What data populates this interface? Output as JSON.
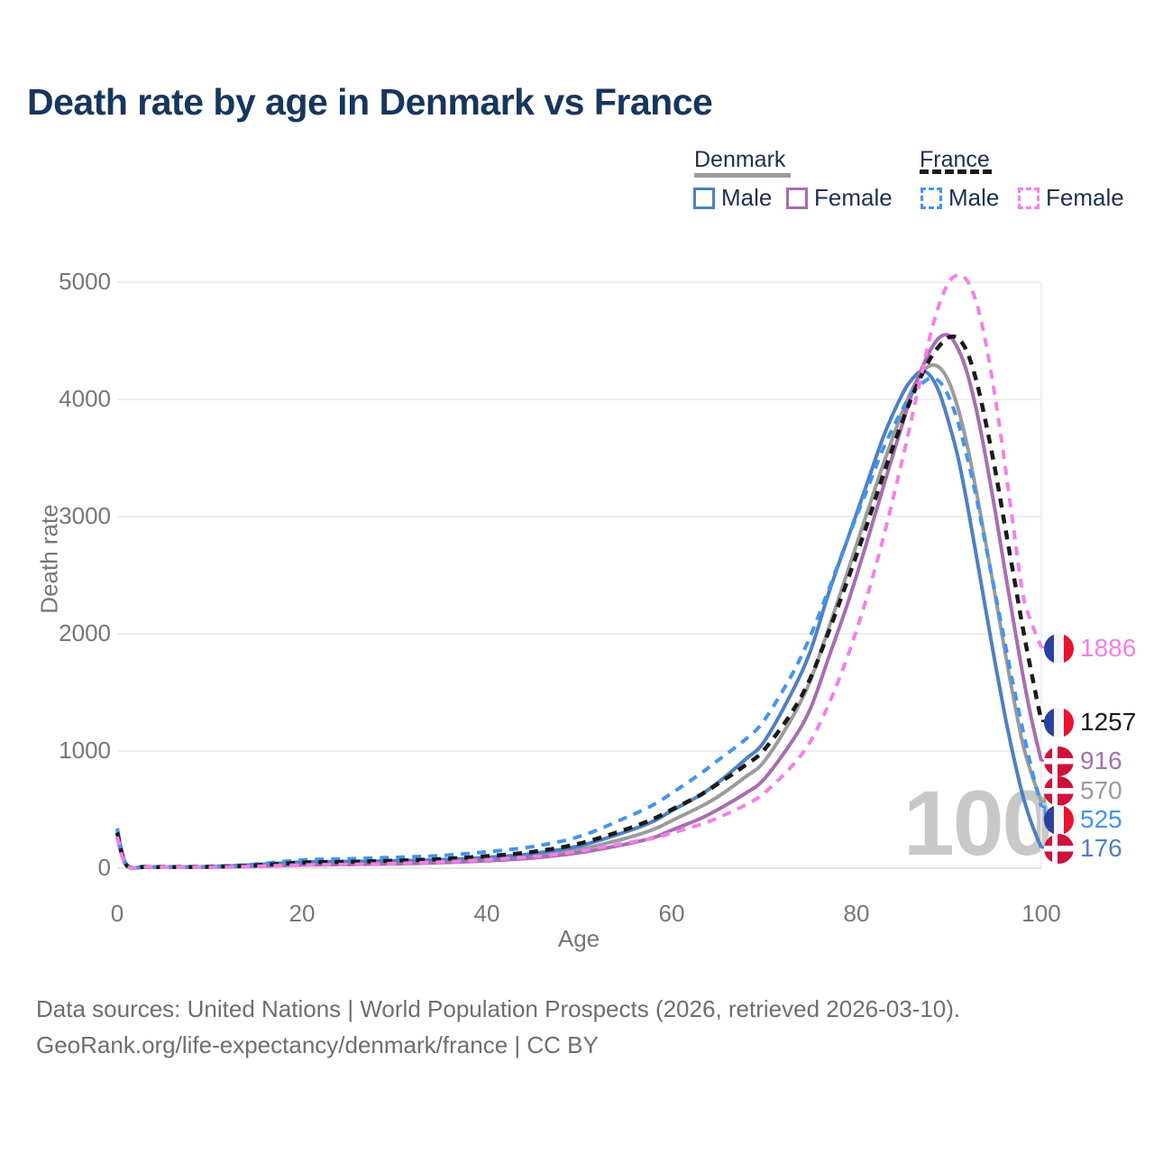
{
  "title": "Death rate by age in Denmark vs France",
  "legend": {
    "groups": [
      {
        "label": "Denmark",
        "items": [
          {
            "label": "Male"
          },
          {
            "label": "Female"
          }
        ]
      },
      {
        "label": "France",
        "items": [
          {
            "label": "Male"
          },
          {
            "label": "Female"
          }
        ]
      }
    ]
  },
  "watermark": "100",
  "footer": {
    "line1": "Data sources: United Nations | World Population Prospects (2026, retrieved 2026-03-10).",
    "line2": "GeoRank.org/life-expectancy/denmark/france | CC BY"
  },
  "chart_data": {
    "type": "line",
    "title": "Death rate by age in Denmark vs France",
    "xlabel": "Age",
    "ylabel": "Death rate",
    "xlim": [
      0,
      100
    ],
    "ylim": [
      0,
      5000
    ],
    "grid": "horizontal",
    "x_ticks": [
      "0",
      "20",
      "40",
      "60",
      "80",
      "100"
    ],
    "y_ticks": [
      "0",
      "1000",
      "2000",
      "3000",
      "4000",
      "5000"
    ],
    "series": [
      {
        "name": "Denmark total",
        "country": "Denmark",
        "sex": "both",
        "color": "#9b9b9b",
        "dash": false,
        "end_label": "570",
        "flag": "denmark",
        "points": [
          [
            0,
            300
          ],
          [
            1,
            26
          ],
          [
            3,
            11
          ],
          [
            5,
            9
          ],
          [
            10,
            11
          ],
          [
            15,
            24
          ],
          [
            20,
            40
          ],
          [
            25,
            44
          ],
          [
            30,
            50
          ],
          [
            35,
            60
          ],
          [
            40,
            78
          ],
          [
            45,
            105
          ],
          [
            50,
            160
          ],
          [
            55,
            255
          ],
          [
            58,
            330
          ],
          [
            60,
            405
          ],
          [
            63,
            520
          ],
          [
            65,
            610
          ],
          [
            68,
            780
          ],
          [
            70,
            910
          ],
          [
            73,
            1280
          ],
          [
            75,
            1600
          ],
          [
            77,
            2050
          ],
          [
            79,
            2520
          ],
          [
            81,
            3000
          ],
          [
            83,
            3470
          ],
          [
            85,
            3900
          ],
          [
            86,
            4080
          ],
          [
            87,
            4220
          ],
          [
            88,
            4290
          ],
          [
            89,
            4270
          ],
          [
            90,
            4150
          ],
          [
            91,
            3920
          ],
          [
            92,
            3600
          ],
          [
            93,
            3200
          ],
          [
            94,
            2770
          ],
          [
            95,
            2330
          ],
          [
            96,
            1880
          ],
          [
            97,
            1450
          ],
          [
            98,
            1060
          ],
          [
            99,
            790
          ],
          [
            100,
            570
          ]
        ]
      },
      {
        "name": "Denmark Male",
        "country": "Denmark",
        "sex": "male",
        "color": "#4e80c2",
        "dash": false,
        "end_label": "176",
        "flag": "denmark",
        "points": [
          [
            0,
            330
          ],
          [
            1,
            30
          ],
          [
            3,
            12
          ],
          [
            5,
            10
          ],
          [
            10,
            12
          ],
          [
            15,
            30
          ],
          [
            20,
            52
          ],
          [
            25,
            57
          ],
          [
            30,
            62
          ],
          [
            35,
            72
          ],
          [
            40,
            92
          ],
          [
            45,
            125
          ],
          [
            50,
            190
          ],
          [
            55,
            310
          ],
          [
            58,
            400
          ],
          [
            60,
            490
          ],
          [
            63,
            620
          ],
          [
            65,
            730
          ],
          [
            68,
            930
          ],
          [
            70,
            1080
          ],
          [
            73,
            1500
          ],
          [
            75,
            1850
          ],
          [
            77,
            2350
          ],
          [
            79,
            2800
          ],
          [
            81,
            3250
          ],
          [
            83,
            3700
          ],
          [
            85,
            4050
          ],
          [
            86,
            4170
          ],
          [
            87,
            4240
          ],
          [
            88,
            4200
          ],
          [
            89,
            4050
          ],
          [
            90,
            3800
          ],
          [
            91,
            3500
          ],
          [
            92,
            3100
          ],
          [
            93,
            2650
          ],
          [
            94,
            2200
          ],
          [
            95,
            1750
          ],
          [
            96,
            1330
          ],
          [
            97,
            950
          ],
          [
            98,
            620
          ],
          [
            99,
            370
          ],
          [
            100,
            176
          ]
        ]
      },
      {
        "name": "Denmark Female",
        "country": "Denmark",
        "sex": "female",
        "color": "#a86db3",
        "dash": false,
        "end_label": "916",
        "flag": "denmark",
        "points": [
          [
            0,
            265
          ],
          [
            1,
            22
          ],
          [
            3,
            9
          ],
          [
            5,
            8
          ],
          [
            10,
            9
          ],
          [
            15,
            16
          ],
          [
            20,
            27
          ],
          [
            25,
            31
          ],
          [
            30,
            37
          ],
          [
            35,
            47
          ],
          [
            40,
            63
          ],
          [
            45,
            88
          ],
          [
            50,
            132
          ],
          [
            55,
            205
          ],
          [
            58,
            260
          ],
          [
            60,
            325
          ],
          [
            63,
            420
          ],
          [
            65,
            500
          ],
          [
            68,
            640
          ],
          [
            70,
            760
          ],
          [
            73,
            1080
          ],
          [
            75,
            1360
          ],
          [
            77,
            1800
          ],
          [
            79,
            2250
          ],
          [
            81,
            2750
          ],
          [
            83,
            3280
          ],
          [
            85,
            3800
          ],
          [
            86,
            4050
          ],
          [
            87,
            4250
          ],
          [
            88,
            4420
          ],
          [
            89,
            4530
          ],
          [
            90,
            4545
          ],
          [
            91,
            4430
          ],
          [
            92,
            4220
          ],
          [
            93,
            3900
          ],
          [
            94,
            3500
          ],
          [
            95,
            3050
          ],
          [
            96,
            2570
          ],
          [
            97,
            2100
          ],
          [
            98,
            1650
          ],
          [
            99,
            1250
          ],
          [
            100,
            916
          ]
        ]
      },
      {
        "name": "France Male",
        "country": "France",
        "sex": "male",
        "color": "#4394f0",
        "dash": true,
        "end_label": "525",
        "flag": "france",
        "points": [
          [
            0,
            340
          ],
          [
            1,
            32
          ],
          [
            3,
            14
          ],
          [
            5,
            12
          ],
          [
            10,
            14
          ],
          [
            15,
            35
          ],
          [
            20,
            70
          ],
          [
            25,
            80
          ],
          [
            30,
            92
          ],
          [
            35,
            108
          ],
          [
            40,
            140
          ],
          [
            45,
            185
          ],
          [
            50,
            270
          ],
          [
            55,
            430
          ],
          [
            58,
            540
          ],
          [
            60,
            640
          ],
          [
            63,
            800
          ],
          [
            65,
            920
          ],
          [
            68,
            1100
          ],
          [
            70,
            1260
          ],
          [
            73,
            1650
          ],
          [
            75,
            1980
          ],
          [
            77,
            2380
          ],
          [
            79,
            2800
          ],
          [
            81,
            3200
          ],
          [
            83,
            3600
          ],
          [
            85,
            3920
          ],
          [
            86,
            4050
          ],
          [
            87,
            4130
          ],
          [
            88,
            4180
          ],
          [
            89,
            4150
          ],
          [
            90,
            4020
          ],
          [
            91,
            3800
          ],
          [
            92,
            3500
          ],
          [
            93,
            3150
          ],
          [
            94,
            2750
          ],
          [
            95,
            2350
          ],
          [
            96,
            1950
          ],
          [
            97,
            1550
          ],
          [
            98,
            1180
          ],
          [
            99,
            830
          ],
          [
            100,
            525
          ]
        ]
      },
      {
        "name": "France total",
        "country": "France",
        "sex": "both",
        "color": "#1a1a1a",
        "dash": true,
        "end_label": "1257",
        "flag": "france",
        "points": [
          [
            0,
            305
          ],
          [
            1,
            26
          ],
          [
            3,
            11
          ],
          [
            5,
            10
          ],
          [
            10,
            12
          ],
          [
            15,
            25
          ],
          [
            20,
            48
          ],
          [
            25,
            55
          ],
          [
            30,
            64
          ],
          [
            35,
            78
          ],
          [
            40,
            103
          ],
          [
            45,
            140
          ],
          [
            50,
            210
          ],
          [
            55,
            330
          ],
          [
            58,
            420
          ],
          [
            60,
            500
          ],
          [
            63,
            620
          ],
          [
            65,
            720
          ],
          [
            68,
            880
          ],
          [
            70,
            1010
          ],
          [
            73,
            1330
          ],
          [
            75,
            1620
          ],
          [
            77,
            2020
          ],
          [
            79,
            2450
          ],
          [
            81,
            2900
          ],
          [
            83,
            3380
          ],
          [
            85,
            3820
          ],
          [
            86,
            4020
          ],
          [
            87,
            4200
          ],
          [
            88,
            4350
          ],
          [
            89,
            4460
          ],
          [
            90,
            4530
          ],
          [
            91,
            4520
          ],
          [
            92,
            4400
          ],
          [
            93,
            4150
          ],
          [
            94,
            3800
          ],
          [
            95,
            3400
          ],
          [
            96,
            2950
          ],
          [
            97,
            2500
          ],
          [
            98,
            2050
          ],
          [
            99,
            1640
          ],
          [
            100,
            1257
          ]
        ]
      },
      {
        "name": "France Female",
        "country": "France",
        "sex": "female",
        "color": "#f57fe6",
        "dash": true,
        "end_label": "1886",
        "flag": "france",
        "points": [
          [
            0,
            270
          ],
          [
            1,
            22
          ],
          [
            3,
            9
          ],
          [
            5,
            8
          ],
          [
            10,
            9
          ],
          [
            15,
            16
          ],
          [
            20,
            27
          ],
          [
            25,
            32
          ],
          [
            30,
            40
          ],
          [
            35,
            52
          ],
          [
            40,
            72
          ],
          [
            45,
            98
          ],
          [
            50,
            145
          ],
          [
            55,
            215
          ],
          [
            58,
            255
          ],
          [
            60,
            300
          ],
          [
            63,
            370
          ],
          [
            65,
            430
          ],
          [
            68,
            540
          ],
          [
            70,
            640
          ],
          [
            73,
            870
          ],
          [
            75,
            1080
          ],
          [
            77,
            1400
          ],
          [
            79,
            1800
          ],
          [
            81,
            2280
          ],
          [
            83,
            2850
          ],
          [
            85,
            3500
          ],
          [
            86,
            3850
          ],
          [
            87,
            4200
          ],
          [
            88,
            4550
          ],
          [
            89,
            4820
          ],
          [
            90,
            5000
          ],
          [
            91,
            5060
          ],
          [
            92,
            5010
          ],
          [
            93,
            4820
          ],
          [
            94,
            4480
          ],
          [
            95,
            4020
          ],
          [
            96,
            3480
          ],
          [
            97,
            2900
          ],
          [
            98,
            2340
          ],
          [
            99,
            2080
          ],
          [
            100,
            1886
          ]
        ]
      }
    ]
  }
}
